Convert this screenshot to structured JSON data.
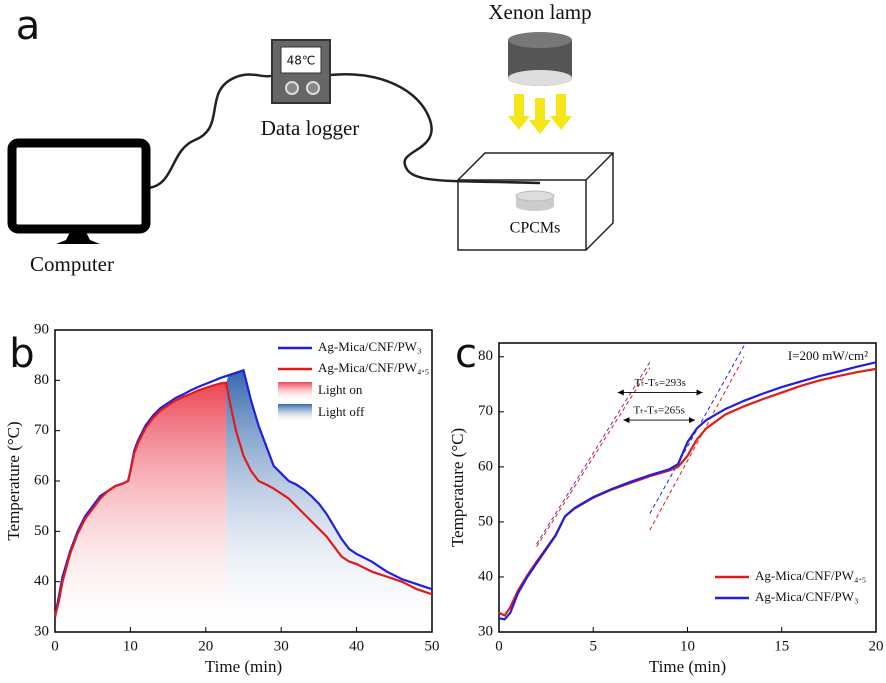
{
  "diagram": {
    "panel_a": "a",
    "lamp": "Xenon lamp",
    "reading": "48℃",
    "logger": "Data logger",
    "computer": "Computer",
    "sample": "CPCMs",
    "panel_b": "b",
    "panel_c": "c"
  },
  "chart_data": [
    {
      "type": "line",
      "x_label": "Time (min)",
      "y_label": "Temperature (°C)",
      "xlim": [
        0,
        50
      ],
      "ylim": [
        30,
        90
      ],
      "xticks": [
        0,
        10,
        20,
        30,
        40,
        50
      ],
      "yticks": [
        30,
        40,
        50,
        60,
        70,
        80,
        90
      ],
      "legend": "upper right",
      "area_labels": [
        "Light on",
        "Light off"
      ],
      "series": [
        {
          "name": "Ag-Mica/CNF/PW₃",
          "color": "#1f1fe0",
          "x": [
            0,
            0.5,
            1,
            2,
            3,
            4,
            5,
            6,
            7,
            8,
            9,
            9.7,
            10,
            10.5,
            11,
            12,
            13,
            14,
            15,
            16,
            17,
            18,
            19,
            20,
            21,
            22,
            23,
            24,
            25,
            26,
            27,
            28,
            29,
            30,
            31,
            32,
            33,
            34,
            35,
            36,
            37,
            38,
            39,
            40,
            42,
            44,
            46,
            48,
            50
          ],
          "values": [
            33,
            37,
            41,
            46,
            50,
            53,
            55,
            57,
            58,
            59,
            59.5,
            60,
            62,
            66,
            68,
            71,
            73,
            74.5,
            75.5,
            76.5,
            77.2,
            78,
            78.7,
            79.3,
            79.9,
            80.5,
            81,
            81.5,
            82,
            76,
            71,
            67,
            63,
            61.5,
            60,
            59.3,
            58.3,
            57,
            55.5,
            53.5,
            51,
            48.5,
            46.5,
            45.5,
            44,
            42,
            40.5,
            39.5,
            38.5
          ]
        },
        {
          "name": "Ag-Mica/CNF/PW₄.₅",
          "color": "#e21a1a",
          "x": [
            0,
            0.5,
            1,
            2,
            3,
            4,
            5,
            6,
            7,
            8,
            9,
            9.7,
            10,
            10.5,
            11,
            12,
            13,
            14,
            15,
            16,
            17,
            18,
            19,
            20,
            21,
            22,
            22.7,
            23,
            24,
            25,
            26,
            27,
            28,
            29,
            30,
            31,
            32,
            33,
            34,
            35,
            36,
            37,
            38,
            39,
            40,
            42,
            44,
            46,
            48,
            50
          ],
          "values": [
            33,
            36,
            40,
            45.5,
            49.5,
            52.5,
            54.5,
            56.5,
            58,
            59,
            59.5,
            60,
            62,
            65.5,
            67.5,
            70.5,
            72.5,
            74,
            75,
            76,
            76.7,
            77.3,
            78,
            78.5,
            79,
            79.4,
            79.5,
            77,
            70,
            65,
            62,
            60,
            59.3,
            58.5,
            57.5,
            56.5,
            55,
            53.5,
            52,
            50.5,
            49,
            47,
            45,
            44,
            43.5,
            42,
            41,
            40,
            38.5,
            37.5
          ]
        }
      ]
    },
    {
      "type": "line",
      "x_label": "Time (min)",
      "y_label": "Temperature (°C)",
      "annotation": "I=200 mW/cm²",
      "interval_labels": [
        "Tₜ-Tₛ=293s",
        "Tₜ-Tₛ=265s"
      ],
      "xlim": [
        0,
        20
      ],
      "ylim": [
        30,
        82.5
      ],
      "xticks": [
        0,
        5,
        10,
        15,
        20
      ],
      "yticks": [
        30,
        40,
        50,
        60,
        70,
        80
      ],
      "legend": "lower right",
      "series": [
        {
          "name": "Ag-Mica/CNF/PW₄.₅",
          "color": "#e21a1a",
          "x": [
            0,
            0.3,
            0.6,
            1,
            1.5,
            2,
            2.5,
            3,
            3.5,
            4,
            5,
            6,
            7,
            8,
            9,
            9.5,
            10,
            10.5,
            11,
            12,
            13,
            14,
            15,
            16,
            17,
            18,
            19,
            20
          ],
          "values": [
            33.5,
            33,
            34.5,
            37.5,
            40.3,
            42.8,
            45.2,
            47.6,
            51,
            52.4,
            54.4,
            55.9,
            57.1,
            58.3,
            59.3,
            60,
            62,
            65,
            67,
            69.5,
            71,
            72.3,
            73.5,
            74.7,
            75.7,
            76.5,
            77.2,
            77.8
          ]
        },
        {
          "name": "Ag-Mica/CNF/PW₃",
          "color": "#1f1fe0",
          "x": [
            0,
            0.3,
            0.6,
            1,
            1.5,
            2,
            2.5,
            3,
            3.5,
            4,
            5,
            6,
            7,
            8,
            9,
            9.5,
            10,
            10.5,
            11,
            12,
            13,
            14,
            15,
            16,
            17,
            18,
            19,
            20
          ],
          "values": [
            32.5,
            32.3,
            33.5,
            37,
            40,
            42.5,
            45,
            47.5,
            51,
            52.5,
            54.5,
            56,
            57.3,
            58.5,
            59.5,
            60.5,
            64.5,
            67,
            68.5,
            70.5,
            72,
            73.3,
            74.5,
            75.5,
            76.5,
            77.3,
            78.2,
            79
          ]
        }
      ],
      "tangent_lines": [
        {
          "color": "#7a2aa8",
          "x": [
            2,
            8
          ],
          "values": [
            46,
            79
          ]
        },
        {
          "color": "#e21a1a",
          "x": [
            2,
            8
          ],
          "values": [
            45.5,
            78
          ]
        },
        {
          "color": "#1f1fe0",
          "x": [
            8,
            13
          ],
          "values": [
            51.5,
            82
          ]
        },
        {
          "color": "#e21a1a",
          "x": [
            8,
            13
          ],
          "values": [
            48.5,
            80
          ]
        }
      ]
    }
  ]
}
